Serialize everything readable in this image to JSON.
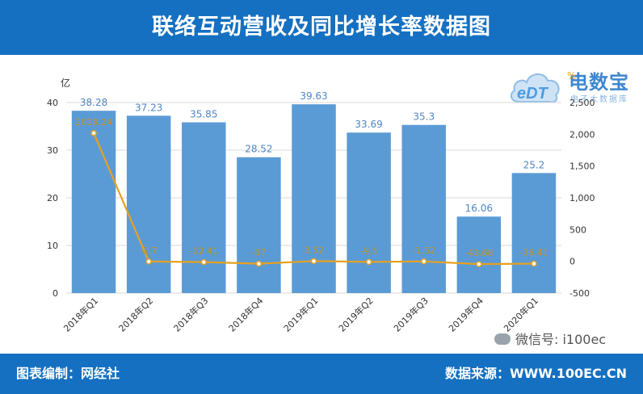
{
  "header": {
    "title": "联络互动营收及同比增长率数据图"
  },
  "footer": {
    "left_label": "图表编制：网经社",
    "right_label": "数据来源：WWW.100EC.CN"
  },
  "watermark": {
    "wechat_label": "微信号: i100ec"
  },
  "logo": {
    "brand": "电数宝",
    "sub": "电子大数据库",
    "mark": "eDT"
  },
  "colors": {
    "header_bg": "#1570c1",
    "bar": "#5b9bd5",
    "line": "#e6a11f",
    "bar_label": "#4f86c6",
    "line_label": "#c39520"
  },
  "chart_data": {
    "type": "bar",
    "categories": [
      "2018年Q1",
      "2018年Q2",
      "2018年Q3",
      "2018年Q4",
      "2019年Q1",
      "2019年Q2",
      "2019年Q3",
      "2019年Q4",
      "2020年Q1"
    ],
    "series": [
      {
        "name": "",
        "type": "bar",
        "axis": "left",
        "values": [
          38.28,
          37.23,
          35.85,
          28.52,
          39.63,
          33.69,
          35.3,
          16.06,
          25.2
        ],
        "labels": [
          "38.28",
          "37.23",
          "35.85",
          "28.52",
          "39.63",
          "33.69",
          "35.3",
          "16.06",
          "25.2"
        ]
      },
      {
        "name": "",
        "type": "line",
        "axis": "right",
        "values": [
          2018.24,
          -2.7,
          -12.41,
          -37,
          3.52,
          -9.5,
          -1.52,
          -43.68,
          -36.41
        ],
        "labels": [
          "2018.24",
          "-2.7",
          "-12.41",
          "-37",
          "3.52",
          "-9.5",
          "-1.52",
          "-43.68",
          "-36.41"
        ]
      }
    ],
    "ylabel": "亿",
    "y2label": "%",
    "ylim": [
      0,
      40
    ],
    "yticks": [
      "0",
      "10",
      "20",
      "30",
      "40"
    ],
    "y2lim": [
      -500,
      2500
    ],
    "y2ticks": [
      "-500",
      "0",
      "500",
      "1,000",
      "1,500",
      "2,000",
      "2,500"
    ],
    "grid": true,
    "legend": "none"
  }
}
